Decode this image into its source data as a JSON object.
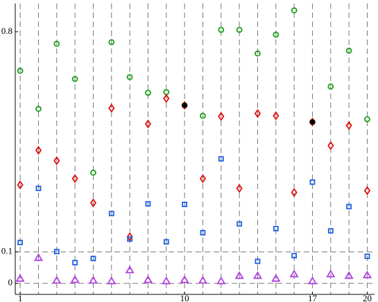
{
  "chart_data": {
    "type": "scatter",
    "x": [
      1,
      2,
      3,
      4,
      5,
      6,
      7,
      8,
      9,
      10,
      11,
      12,
      13,
      14,
      15,
      16,
      17,
      18,
      19,
      20
    ],
    "series": [
      {
        "color": "#1aa01a",
        "marker": "circle",
        "values": [
          0.676,
          0.555,
          0.762,
          0.65,
          0.352,
          0.767,
          0.656,
          0.606,
          0.608,
          0.566,
          0.533,
          0.806,
          0.806,
          0.731,
          0.791,
          0.868,
          0.513,
          0.626,
          0.74,
          0.522
        ]
      },
      {
        "color": "#e01010",
        "marker": "diamond",
        "values": [
          0.313,
          0.423,
          0.39,
          0.333,
          0.256,
          0.557,
          0.148,
          0.507,
          0.588,
          0.566,
          0.333,
          0.531,
          0.302,
          0.54,
          0.533,
          0.289,
          0.513,
          0.438,
          0.502,
          0.295
        ]
      },
      {
        "color": "#2060e0",
        "marker": "square",
        "values": [
          0.13,
          0.302,
          0.101,
          0.066,
          0.079,
          0.222,
          0.141,
          0.253,
          0.132,
          0.251,
          0.161,
          0.396,
          0.189,
          0.07,
          0.174,
          0.088,
          0.322,
          0.167,
          0.244,
          0.086
        ]
      },
      {
        "color": "#b040e0",
        "marker": "triangle",
        "values": [
          0.015,
          0.081,
          0.009,
          0.011,
          0.009,
          0.007,
          0.042,
          0.011,
          0.007,
          0.011,
          0.009,
          0.007,
          0.024,
          0.024,
          0.015,
          0.029,
          0.007,
          0.029,
          0.024,
          0.026
        ]
      },
      {
        "color": "#000000",
        "marker": "star",
        "values": [
          null,
          null,
          null,
          null,
          null,
          null,
          null,
          null,
          null,
          0.566,
          null,
          null,
          null,
          null,
          null,
          null,
          0.513,
          null,
          null,
          null
        ]
      }
    ],
    "xlim": [
      0.73,
      20.4
    ],
    "ylim": [
      -0.035,
      0.89
    ],
    "xticks": [
      1,
      10,
      17,
      20
    ],
    "yticks": [
      0,
      0.1,
      0.8
    ],
    "vgrid": true,
    "hgrid_values": [
      0,
      0.1
    ]
  }
}
